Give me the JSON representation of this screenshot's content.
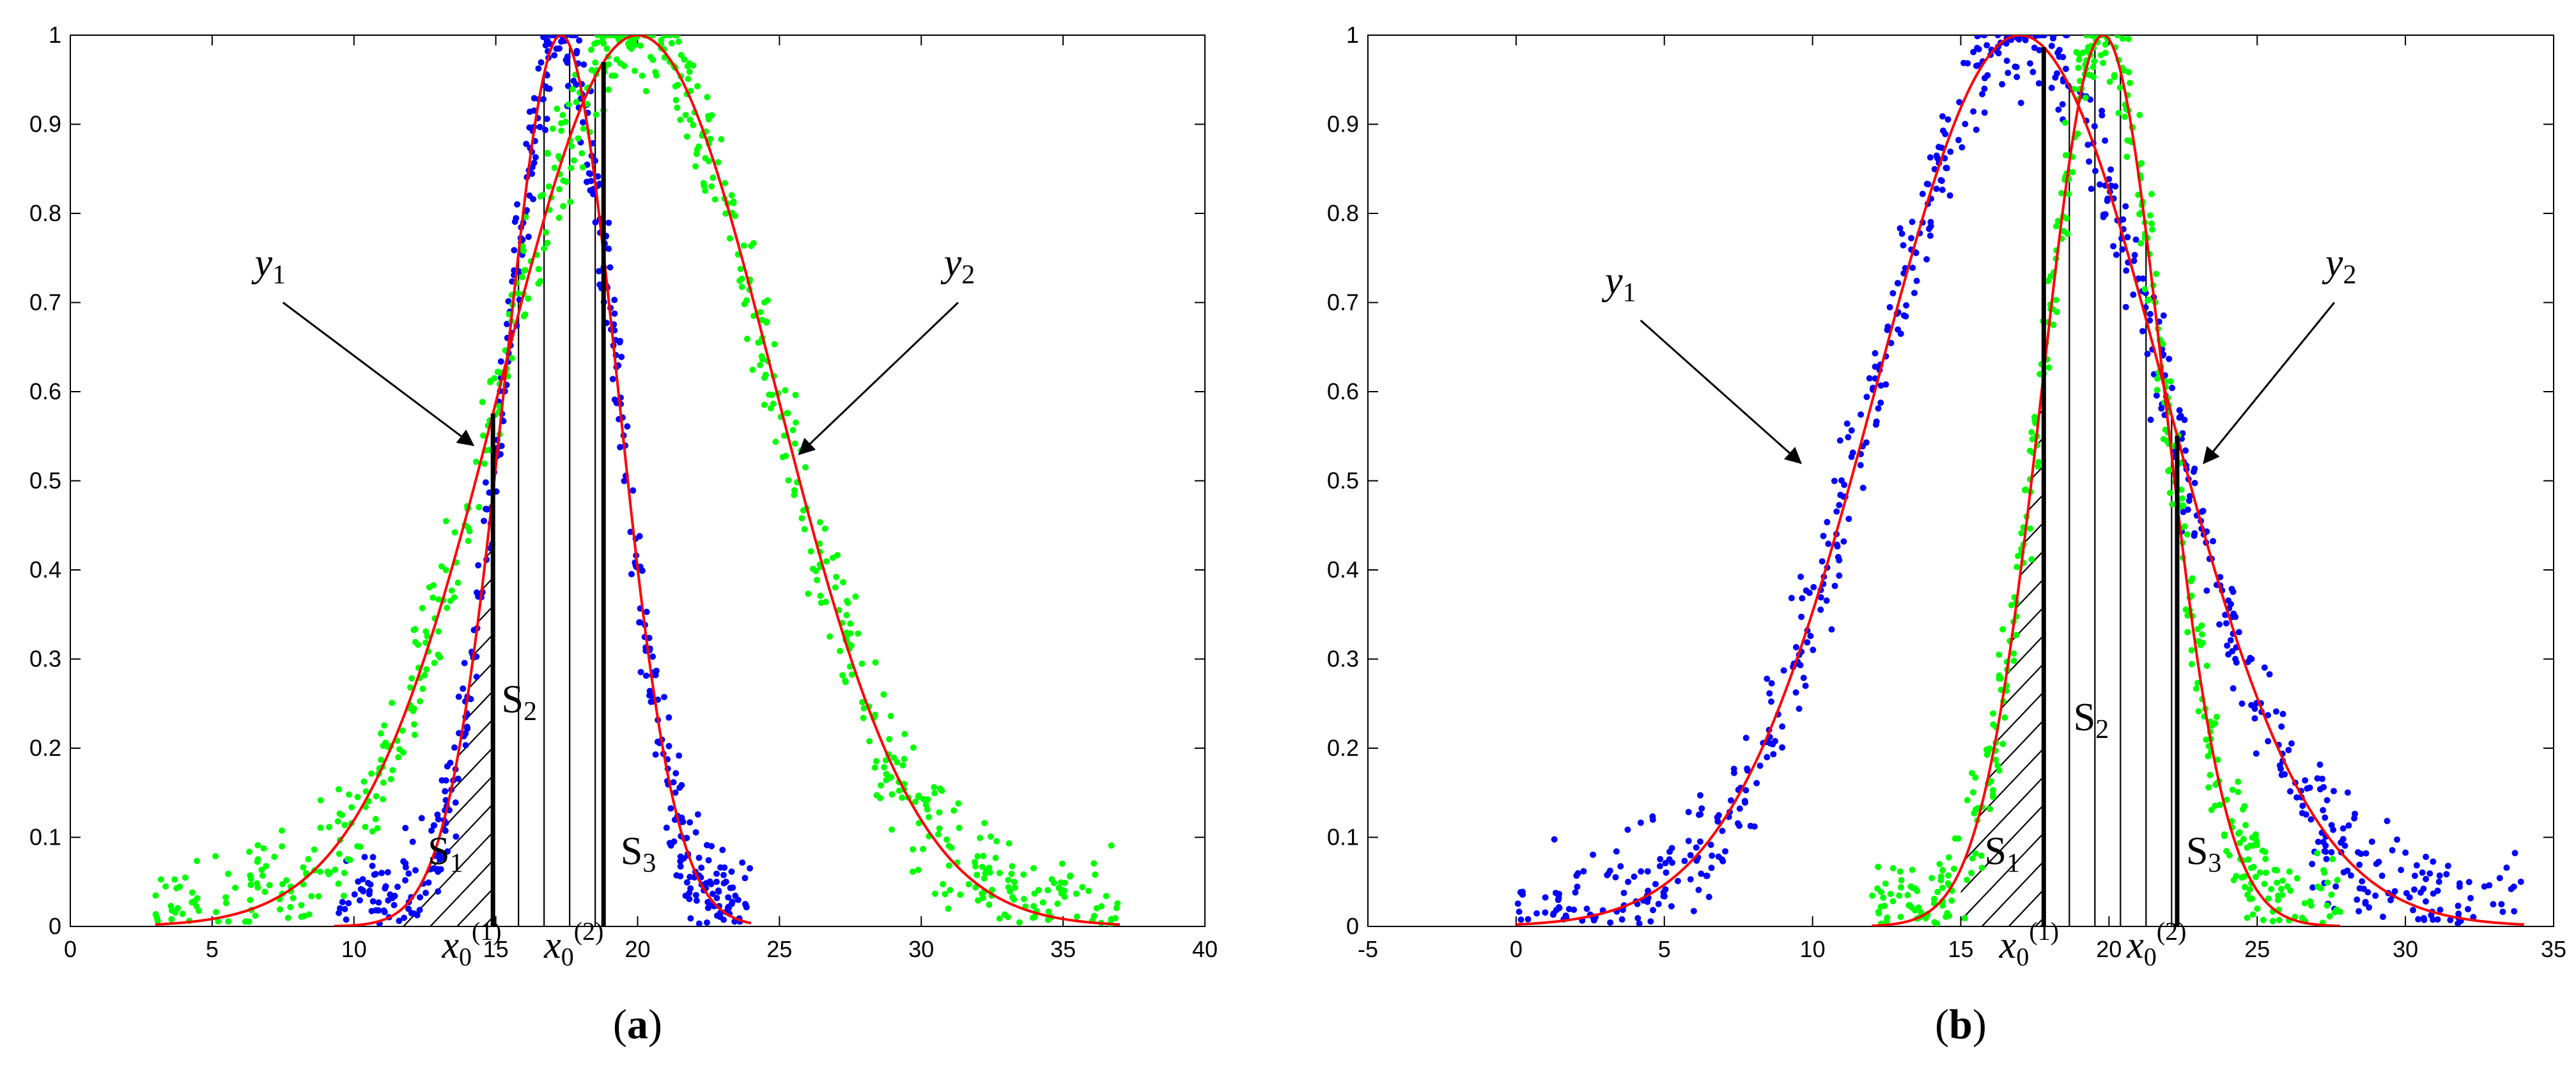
{
  "chart_data": [
    {
      "type": "scatter",
      "panel_label": "(a)",
      "panel_letter": "a",
      "xlim": [
        0,
        40
      ],
      "ylim": [
        0,
        1
      ],
      "xticks": [
        "0",
        "5",
        "10",
        "15",
        "20",
        "25",
        "30",
        "35",
        "40"
      ],
      "yticks": [
        "0",
        "0.1",
        "0.2",
        "0.3",
        "0.4",
        "0.5",
        "0.6",
        "0.7",
        "0.8",
        "0.9",
        "1"
      ],
      "grid": false,
      "legend": "none",
      "series": [
        {
          "label": "y1",
          "color": "#0000ff",
          "curve_color": "#ff0000",
          "mean": 17.3,
          "sigma": 2.0,
          "x_range": [
            9.3,
            24.0
          ],
          "count": 560
        },
        {
          "label": "y2",
          "color": "#00ff00",
          "curve_color": "#ff0000",
          "mean": 20.0,
          "sigma": 4.85,
          "x_range": [
            3.0,
            37.0
          ],
          "count": 760
        }
      ],
      "vertical_lines": [
        14.9,
        18.8
      ],
      "regions": [
        {
          "name": "S1",
          "main": "S",
          "sub": "1",
          "x_from": 11.0,
          "x_to": 14.9,
          "hatch": "forward"
        },
        {
          "name": "S2",
          "main": "S",
          "sub": "2",
          "x_from": 14.9,
          "x_to": 18.8,
          "hatch": "vertical"
        },
        {
          "name": "S3",
          "main": "S",
          "sub": "3",
          "x_from": 18.8,
          "x_to": 21.6,
          "hatch": "backward"
        }
      ],
      "threshold_labels": [
        {
          "main": "x",
          "sub": "0",
          "sup": "(1)",
          "x": 13.1,
          "y": -0.035
        },
        {
          "main": "x",
          "sub": "0",
          "sup": "(2)",
          "x": 16.7,
          "y": -0.035
        }
      ],
      "region_labels": [
        {
          "main": "S",
          "sub": "1",
          "x": 12.6,
          "y": 0.07
        },
        {
          "main": "S",
          "sub": "2",
          "x": 15.2,
          "y": 0.24
        },
        {
          "main": "S",
          "sub": "3",
          "x": 19.4,
          "y": 0.07
        }
      ],
      "annotations": [
        {
          "main": "y",
          "sub": "1",
          "x": 6.5,
          "y": 0.73,
          "arrow_from": [
            7.5,
            0.7
          ],
          "arrow_to": [
            14.2,
            0.54
          ]
        },
        {
          "main": "y",
          "sub": "2",
          "x": 30.8,
          "y": 0.73,
          "arrow_from": [
            31.3,
            0.7
          ],
          "arrow_to": [
            25.7,
            0.53
          ]
        }
      ]
    },
    {
      "type": "scatter",
      "panel_label": "(b)",
      "panel_letter": "b",
      "xlim": [
        -5,
        35
      ],
      "ylim": [
        0,
        1
      ],
      "xticks": [
        "-5",
        "0",
        "5",
        "10",
        "15",
        "20",
        "25",
        "30",
        "35"
      ],
      "yticks": [
        "0",
        "0.1",
        "0.2",
        "0.3",
        "0.4",
        "0.5",
        "0.6",
        "0.7",
        "0.8",
        "0.9",
        "1"
      ],
      "grid": false,
      "legend": "none",
      "series": [
        {
          "label": "y1",
          "color": "#0000ff",
          "curve_color": "#ff0000",
          "mean": 17.0,
          "sigma": 4.85,
          "x_range": [
            0.0,
            34.0
          ],
          "count": 760
        },
        {
          "label": "y2",
          "color": "#00ff00",
          "curve_color": "#ff0000",
          "mean": 19.8,
          "sigma": 2.05,
          "x_range": [
            12.0,
            27.8
          ],
          "count": 560
        }
      ],
      "vertical_lines": [
        17.8,
        22.3
      ],
      "regions": [
        {
          "name": "S1",
          "main": "S",
          "sub": "1",
          "x_from": 15.0,
          "x_to": 17.8,
          "hatch": "forward"
        },
        {
          "name": "S2",
          "main": "S",
          "sub": "2",
          "x_from": 17.8,
          "x_to": 22.3,
          "hatch": "vertical"
        },
        {
          "name": "S3",
          "main": "S",
          "sub": "3",
          "x_from": 22.3,
          "x_to": 24.6,
          "hatch": "backward"
        }
      ],
      "threshold_labels": [
        {
          "main": "x",
          "sub": "0",
          "sup": "(1)",
          "x": 16.3,
          "y": -0.035
        },
        {
          "main": "x",
          "sub": "0",
          "sup": "(2)",
          "x": 20.6,
          "y": -0.035
        }
      ],
      "region_labels": [
        {
          "main": "S",
          "sub": "1",
          "x": 15.8,
          "y": 0.07
        },
        {
          "main": "S",
          "sub": "2",
          "x": 18.8,
          "y": 0.22
        },
        {
          "main": "S",
          "sub": "3",
          "x": 22.6,
          "y": 0.07
        }
      ],
      "annotations": [
        {
          "main": "y",
          "sub": "1",
          "x": 3.0,
          "y": 0.71,
          "arrow_from": [
            4.2,
            0.68
          ],
          "arrow_to": [
            9.6,
            0.52
          ]
        },
        {
          "main": "y",
          "sub": "2",
          "x": 27.3,
          "y": 0.73,
          "arrow_from": [
            27.6,
            0.7
          ],
          "arrow_to": [
            23.2,
            0.52
          ]
        }
      ]
    }
  ]
}
